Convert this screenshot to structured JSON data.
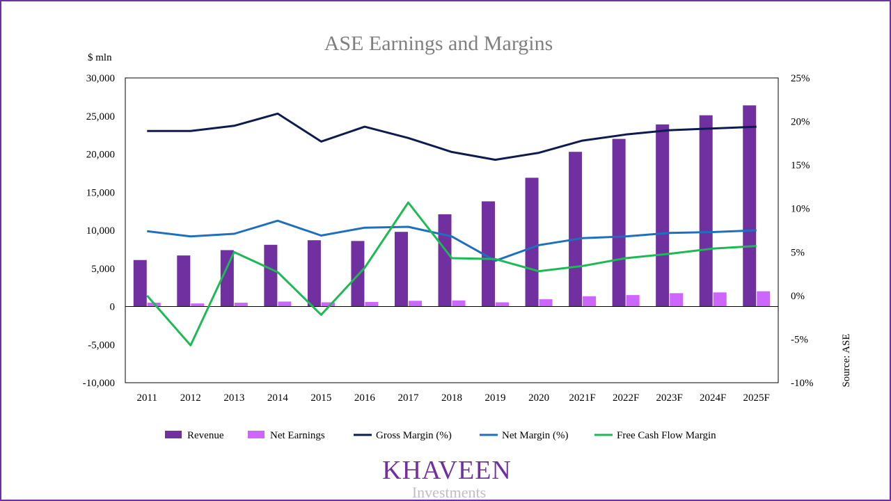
{
  "chart_data": {
    "type": "bar",
    "title": "ASE Earnings and Margins",
    "y_unit_label": "$ mln",
    "source_label": "Source: ASE",
    "categories": [
      "2011",
      "2012",
      "2013",
      "2014",
      "2015",
      "2016",
      "2017",
      "2018",
      "2019",
      "2020",
      "2021F",
      "2022F",
      "2023F",
      "2024F",
      "2025F"
    ],
    "ylim": [
      -10000,
      30000
    ],
    "y_ticks": [
      "30,000",
      "25,000",
      "20,000",
      "15,000",
      "10,000",
      "5,000",
      "0",
      "-5,000",
      "-10,000"
    ],
    "y2lim": [
      -10,
      25
    ],
    "y2_ticks": [
      "25%",
      "20%",
      "15%",
      "10%",
      "5%",
      "0%",
      "-5%",
      "-10%"
    ],
    "grid": false,
    "legend_position": "bottom",
    "bar_series": [
      {
        "name": "Revenue",
        "color": "#7030A0",
        "values": [
          6100,
          6700,
          7400,
          8100,
          8700,
          8600,
          9800,
          12100,
          13800,
          16900,
          20300,
          22000,
          23900,
          25100,
          26400
        ]
      },
      {
        "name": "Net Earnings",
        "color": "#CC66FF",
        "values": [
          500,
          400,
          500,
          650,
          550,
          600,
          750,
          800,
          550,
          950,
          1350,
          1500,
          1750,
          1850,
          2000
        ]
      }
    ],
    "line_series": [
      {
        "name": "Gross Margin (%)",
        "color": "#0D1B4F",
        "values": [
          18.9,
          18.9,
          19.5,
          20.9,
          17.7,
          19.4,
          18.1,
          16.5,
          15.6,
          16.4,
          17.8,
          18.5,
          19.0,
          19.2,
          19.4
        ]
      },
      {
        "name": "Net Margin (%)",
        "color": "#1F6FBF",
        "values": [
          7.4,
          6.8,
          7.1,
          8.6,
          6.9,
          7.8,
          7.9,
          6.8,
          4.0,
          5.8,
          6.6,
          6.8,
          7.2,
          7.3,
          7.5
        ]
      },
      {
        "name": "Free Cash Flow Margin",
        "color": "#1DB954",
        "values": [
          0.0,
          -5.7,
          5.0,
          2.7,
          -2.2,
          3.2,
          10.7,
          4.3,
          4.2,
          2.8,
          3.4,
          4.3,
          4.8,
          5.4,
          5.7
        ]
      }
    ]
  },
  "branding": {
    "name": "KHAVEEN",
    "sub": "Investments"
  }
}
